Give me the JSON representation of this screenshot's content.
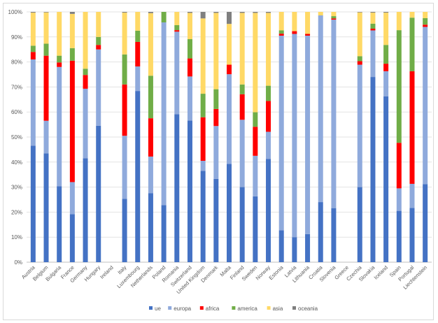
{
  "chart_data": {
    "type": "bar",
    "stacked": "percent",
    "title": "",
    "xlabel": "",
    "ylabel": "",
    "ylim": [
      0,
      100
    ],
    "yticks": [
      "0%",
      "10%",
      "20%",
      "30%",
      "40%",
      "50%",
      "60%",
      "70%",
      "80%",
      "90%",
      "100%"
    ],
    "grid": true,
    "legend_position": "bottom",
    "categories": [
      "Austria",
      "Belgium",
      "Bulgaria",
      "France",
      "Germany",
      "Hungary",
      "Ireland",
      "Italy",
      "Luxembourg",
      "Netherlands",
      "Poland",
      "Romania",
      "Switzerland",
      "United Kingdom",
      "Denmark",
      "Malta",
      "Finland",
      "Sweden",
      "Norway",
      "Estonia",
      "Latvia",
      "Lithuania",
      "Croatia",
      "Slovenia",
      "Greece",
      "Czechia",
      "Slovakia",
      "Iceland",
      "Spain",
      "Portugal",
      "Liechtenstein"
    ],
    "series": [
      {
        "name": "ue",
        "color": "#4472C4",
        "values": [
          46.5,
          43.5,
          30.3,
          19.2,
          41.5,
          54.5,
          0,
          25.3,
          68.4,
          27.6,
          22.8,
          59.1,
          56.6,
          36.5,
          33.3,
          39.3,
          30.0,
          26.3,
          41.2,
          12.7,
          10.0,
          11.2,
          24.0,
          21.6,
          0,
          30.0,
          74.0,
          66.2,
          20.5,
          21.7,
          31.2
        ]
      },
      {
        "name": "europa",
        "color": "#8FAADC",
        "values": [
          34.5,
          13.0,
          47.7,
          12.8,
          27.8,
          30.5,
          0,
          25.2,
          9.8,
          14.6,
          73.0,
          33.0,
          17.6,
          4.0,
          21.1,
          35.8,
          26.9,
          16.2,
          10.9,
          77.8,
          81.2,
          79.3,
          74.6,
          75.3,
          0,
          48.9,
          18.6,
          10.1,
          9.0,
          9.6,
          62.8
        ]
      },
      {
        "name": "africa",
        "color": "#FF0000",
        "values": [
          3.0,
          26.0,
          1.8,
          48.5,
          5.5,
          1.8,
          0,
          20.5,
          9.8,
          15.3,
          0,
          0.6,
          7.2,
          17.4,
          6.8,
          3.8,
          10.2,
          11.6,
          12.3,
          0.8,
          1.1,
          0.7,
          0,
          0.5,
          0,
          1.4,
          0.7,
          3.0,
          18.2,
          45.0,
          0.9
        ]
      },
      {
        "name": "america",
        "color": "#70AD47",
        "values": [
          2.5,
          4.8,
          2.7,
          5.0,
          2.5,
          3.2,
          0,
          12.0,
          4.5,
          17.0,
          4.2,
          2.0,
          7.7,
          9.4,
          7.9,
          0,
          3.9,
          5.8,
          6.1,
          1.3,
          0,
          0,
          0,
          0.9,
          0,
          2.0,
          2.0,
          7.5,
          45.0,
          21.4,
          2.6
        ]
      },
      {
        "name": "asia",
        "color": "#FFD966",
        "values": [
          13.2,
          12.5,
          17.5,
          13.7,
          22.7,
          10.0,
          0,
          16.7,
          7.5,
          25.0,
          0,
          5.3,
          10.5,
          30.1,
          30.5,
          16.3,
          28.6,
          39.7,
          29.1,
          7.4,
          7.7,
          8.8,
          1.4,
          1.7,
          0,
          17.5,
          4.4,
          12.9,
          7.3,
          2.3,
          2.5
        ]
      },
      {
        "name": "oceania",
        "color": "#7F7F7F",
        "values": [
          0.3,
          0.2,
          0,
          0.8,
          0,
          0,
          0,
          0.3,
          0,
          0.5,
          0,
          0,
          0.4,
          2.6,
          0.4,
          4.8,
          0.4,
          0.4,
          0.4,
          0,
          0,
          0,
          0,
          0,
          0,
          0.2,
          0.3,
          0.3,
          0,
          0,
          0
        ]
      }
    ]
  }
}
